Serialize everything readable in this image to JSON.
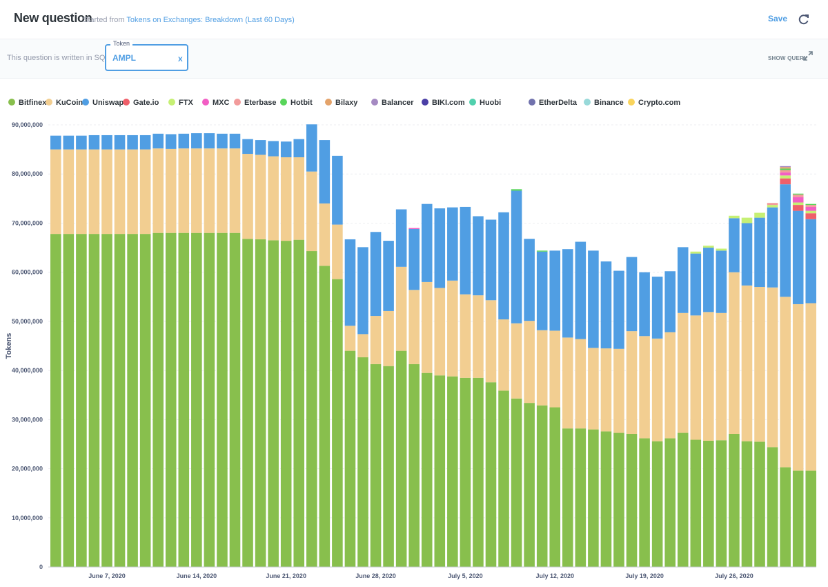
{
  "header": {
    "title": "New question",
    "started_from": "Started from",
    "source_link": "Tokens on Exchanges: Breakdown (Last 60 Days)",
    "save_label": "Save"
  },
  "filter": {
    "sql_note": "This question is written in SQL.",
    "token_label": "Token",
    "token_value": "AMPL",
    "clear_label": "x",
    "show_query_label": "SHOW QUERY"
  },
  "colors": {
    "accent": "#509ee3"
  },
  "chart_data": {
    "type": "bar",
    "stacked": true,
    "ylabel": "Tokens",
    "ylim": [
      0,
      90000000
    ],
    "yticks": [
      0,
      10000000,
      20000000,
      30000000,
      40000000,
      50000000,
      60000000,
      70000000,
      80000000,
      90000000
    ],
    "ytick_labels": [
      "0",
      "10,000,000",
      "20,000,000",
      "30,000,000",
      "40,000,000",
      "50,000,000",
      "60,000,000",
      "70,000,000",
      "80,000,000",
      "90,000,000"
    ],
    "grid": true,
    "legend_position": "top-left",
    "x": [
      "2020-06-03",
      "2020-06-04",
      "2020-06-05",
      "2020-06-06",
      "2020-06-07",
      "2020-06-08",
      "2020-06-09",
      "2020-06-10",
      "2020-06-11",
      "2020-06-12",
      "2020-06-13",
      "2020-06-14",
      "2020-06-15",
      "2020-06-16",
      "2020-06-17",
      "2020-06-18",
      "2020-06-19",
      "2020-06-20",
      "2020-06-21",
      "2020-06-22",
      "2020-06-23",
      "2020-06-24",
      "2020-06-25",
      "2020-06-26",
      "2020-06-27",
      "2020-06-28",
      "2020-06-29",
      "2020-06-30",
      "2020-07-01",
      "2020-07-02",
      "2020-07-03",
      "2020-07-04",
      "2020-07-05",
      "2020-07-06",
      "2020-07-07",
      "2020-07-08",
      "2020-07-09",
      "2020-07-10",
      "2020-07-11",
      "2020-07-12",
      "2020-07-13",
      "2020-07-14",
      "2020-07-15",
      "2020-07-16",
      "2020-07-17",
      "2020-07-18",
      "2020-07-19",
      "2020-07-20",
      "2020-07-21",
      "2020-07-22",
      "2020-07-23",
      "2020-07-24",
      "2020-07-25",
      "2020-07-26",
      "2020-07-27",
      "2020-07-28",
      "2020-07-29",
      "2020-07-30",
      "2020-07-31",
      "2020-08-01"
    ],
    "xtick_labels": [
      {
        "index": 4,
        "label": "June 7, 2020"
      },
      {
        "index": 11,
        "label": "June 14, 2020"
      },
      {
        "index": 18,
        "label": "June 21, 2020"
      },
      {
        "index": 25,
        "label": "June 28, 2020"
      },
      {
        "index": 32,
        "label": "July 5, 2020"
      },
      {
        "index": 39,
        "label": "July 12, 2020"
      },
      {
        "index": 46,
        "label": "July 19, 2020"
      },
      {
        "index": 53,
        "label": "July 26, 2020"
      }
    ],
    "series": [
      {
        "name": "Bitfinex",
        "color": "#88bf4d",
        "values": [
          67.8,
          67.8,
          67.8,
          67.8,
          67.8,
          67.8,
          67.8,
          67.8,
          68.0,
          68.0,
          68.0,
          68.0,
          68.0,
          68.0,
          68.0,
          66.8,
          66.7,
          66.5,
          66.4,
          66.6,
          64.3,
          61.3,
          58.6,
          44.0,
          42.7,
          41.3,
          40.9,
          44.0,
          41.3,
          39.5,
          39.0,
          38.8,
          38.5,
          38.5,
          37.6,
          35.9,
          34.3,
          33.4,
          32.9,
          32.5,
          28.2,
          28.2,
          28.0,
          27.6,
          27.3,
          27.1,
          26.2,
          25.6,
          26.2,
          27.3,
          25.9,
          25.7,
          25.8,
          27.1,
          25.6,
          25.5,
          24.4,
          20.3,
          19.6,
          19.6
        ]
      },
      {
        "name": "KuCoin",
        "color": "#f2ce91",
        "values": [
          17.2,
          17.2,
          17.2,
          17.2,
          17.2,
          17.2,
          17.2,
          17.2,
          17.2,
          17.1,
          17.2,
          17.2,
          17.2,
          17.2,
          17.2,
          17.3,
          17.2,
          17.1,
          17.0,
          16.8,
          16.2,
          12.7,
          11.1,
          5.1,
          4.7,
          9.8,
          11.2,
          17.1,
          15.1,
          18.5,
          17.8,
          19.5,
          17.0,
          16.8,
          16.7,
          14.5,
          15.3,
          16.7,
          15.3,
          15.6,
          18.5,
          18.2,
          16.6,
          16.9,
          17.1,
          20.9,
          20.8,
          20.9,
          21.6,
          24.4,
          25.3,
          26.2,
          25.9,
          32.9,
          31.7,
          31.5,
          32.5,
          34.7,
          33.9,
          34.1
        ]
      },
      {
        "name": "Uniswap",
        "color": "#509ee3",
        "values": [
          2.8,
          2.8,
          2.8,
          2.9,
          2.9,
          2.9,
          2.9,
          2.9,
          3.0,
          3.0,
          3.0,
          3.1,
          3.1,
          3.0,
          3.0,
          3.0,
          3.0,
          3.1,
          3.2,
          3.7,
          9.6,
          12.9,
          14.0,
          17.6,
          17.7,
          17.1,
          14.3,
          11.7,
          12.4,
          15.9,
          16.2,
          14.9,
          17.8,
          16.1,
          16.4,
          21.8,
          27.0,
          16.7,
          16.0,
          16.3,
          18.0,
          19.8,
          19.8,
          17.7,
          15.9,
          15.1,
          13.0,
          12.6,
          12.4,
          13.4,
          12.6,
          13.1,
          12.7,
          11.0,
          12.7,
          14.1,
          16.3,
          22.9,
          19.0,
          17.1
        ]
      },
      {
        "name": "Gate.io",
        "color": "#ef5f6a",
        "values": [
          0,
          0,
          0,
          0,
          0,
          0,
          0,
          0,
          0,
          0,
          0,
          0,
          0,
          0,
          0,
          0,
          0,
          0,
          0,
          0,
          0,
          0,
          0,
          0,
          0,
          0,
          0,
          0,
          0,
          0,
          0,
          0,
          0,
          0,
          0,
          0,
          0,
          0,
          0,
          0,
          0,
          0,
          0,
          0,
          0,
          0,
          0,
          0,
          0,
          0,
          0,
          0,
          0,
          0,
          0,
          0,
          0,
          1.2,
          1.2,
          1.2
        ]
      },
      {
        "name": "FTX",
        "color": "#c6f074",
        "values": [
          0,
          0,
          0,
          0,
          0,
          0,
          0,
          0,
          0,
          0,
          0,
          0,
          0,
          0,
          0,
          0,
          0,
          0,
          0,
          0,
          0,
          0,
          0,
          0,
          0,
          0,
          0,
          0,
          0,
          0,
          0,
          0,
          0,
          0,
          0,
          0,
          0,
          0,
          0,
          0,
          0,
          0,
          0,
          0,
          0,
          0,
          0,
          0,
          0,
          0,
          0.4,
          0.4,
          0.4,
          0.5,
          1.1,
          1.0,
          0.5,
          0.6,
          0.5,
          0.5
        ]
      },
      {
        "name": "MXC",
        "color": "#f25ec4",
        "values": [
          0,
          0,
          0,
          0,
          0,
          0,
          0,
          0,
          0,
          0,
          0,
          0,
          0,
          0,
          0,
          0,
          0,
          0,
          0,
          0,
          0,
          0,
          0,
          0,
          0,
          0,
          0,
          0,
          0.2,
          0,
          0,
          0,
          0,
          0,
          0,
          0,
          0,
          0,
          0,
          0,
          0,
          0,
          0,
          0,
          0,
          0,
          0,
          0,
          0,
          0,
          0,
          0,
          0,
          0,
          0,
          0,
          0,
          0.6,
          1.1,
          0.8
        ]
      },
      {
        "name": "Eterbase",
        "color": "#f29b9b",
        "values": [
          0,
          0,
          0,
          0,
          0,
          0,
          0,
          0,
          0,
          0,
          0,
          0,
          0,
          0,
          0,
          0,
          0,
          0,
          0,
          0,
          0,
          0,
          0,
          0,
          0,
          0,
          0,
          0,
          0,
          0,
          0,
          0,
          0,
          0,
          0,
          0,
          0,
          0,
          0,
          0,
          0,
          0,
          0,
          0,
          0,
          0,
          0,
          0,
          0,
          0,
          0,
          0,
          0,
          0,
          0,
          0,
          0.4,
          0.5,
          0.5,
          0.4
        ]
      },
      {
        "name": "Hotbit",
        "color": "#58d55a",
        "values": [
          0,
          0,
          0,
          0,
          0,
          0,
          0,
          0,
          0,
          0,
          0,
          0,
          0,
          0,
          0,
          0,
          0,
          0,
          0,
          0,
          0,
          0,
          0,
          0,
          0,
          0,
          0,
          0,
          0,
          0,
          0,
          0,
          0,
          0,
          0,
          0,
          0.3,
          0,
          0.2,
          0,
          0,
          0,
          0,
          0,
          0,
          0,
          0,
          0,
          0,
          0,
          0,
          0,
          0,
          0,
          0,
          0,
          0,
          0.3,
          0.2,
          0.2
        ]
      },
      {
        "name": "Bilaxy",
        "color": "#e4a36a",
        "values": [
          0,
          0,
          0,
          0,
          0,
          0,
          0,
          0,
          0,
          0,
          0,
          0,
          0,
          0,
          0,
          0,
          0,
          0,
          0,
          0,
          0,
          0,
          0,
          0,
          0,
          0,
          0,
          0,
          0,
          0,
          0,
          0,
          0,
          0,
          0,
          0,
          0,
          0,
          0,
          0,
          0,
          0,
          0,
          0,
          0,
          0,
          0,
          0,
          0,
          0,
          0,
          0,
          0,
          0,
          0,
          0,
          0,
          0.3,
          0,
          0
        ]
      },
      {
        "name": "Balancer",
        "color": "#a58ac2",
        "values": [
          0,
          0,
          0,
          0,
          0,
          0,
          0,
          0,
          0,
          0,
          0,
          0,
          0,
          0,
          0,
          0,
          0,
          0,
          0,
          0,
          0,
          0,
          0,
          0,
          0,
          0,
          0,
          0,
          0,
          0,
          0,
          0,
          0,
          0,
          0,
          0,
          0,
          0,
          0,
          0,
          0,
          0,
          0,
          0,
          0,
          0,
          0,
          0,
          0,
          0,
          0,
          0,
          0,
          0,
          0,
          0,
          0,
          0.2,
          0,
          0
        ]
      },
      {
        "name": "BIKI.com",
        "color": "#4b3fa6",
        "values": [
          0,
          0,
          0,
          0,
          0,
          0,
          0,
          0,
          0,
          0,
          0,
          0,
          0,
          0,
          0,
          0,
          0,
          0,
          0,
          0,
          0,
          0,
          0,
          0,
          0,
          0,
          0,
          0,
          0,
          0,
          0,
          0,
          0,
          0,
          0,
          0,
          0,
          0,
          0,
          0,
          0,
          0,
          0,
          0,
          0,
          0,
          0,
          0,
          0,
          0,
          0,
          0,
          0,
          0,
          0,
          0,
          0,
          0,
          0,
          0
        ]
      },
      {
        "name": "Huobi",
        "color": "#51d0ad",
        "values": [
          0,
          0,
          0,
          0,
          0,
          0,
          0,
          0,
          0,
          0,
          0,
          0,
          0,
          0,
          0,
          0,
          0,
          0,
          0,
          0,
          0,
          0,
          0,
          0,
          0,
          0,
          0,
          0,
          0,
          0,
          0,
          0,
          0,
          0,
          0,
          0,
          0,
          0,
          0,
          0,
          0,
          0,
          0,
          0,
          0,
          0,
          0,
          0,
          0,
          0,
          0,
          0,
          0,
          0,
          0,
          0,
          0,
          0,
          0,
          0
        ]
      },
      {
        "name": "EtherDelta",
        "color": "#7172ad",
        "values": [
          0,
          0,
          0,
          0,
          0,
          0,
          0,
          0,
          0,
          0,
          0,
          0,
          0,
          0,
          0,
          0,
          0,
          0,
          0,
          0,
          0,
          0,
          0,
          0,
          0,
          0,
          0,
          0,
          0,
          0,
          0,
          0,
          0,
          0,
          0,
          0,
          0,
          0,
          0,
          0,
          0,
          0,
          0,
          0,
          0,
          0,
          0,
          0,
          0,
          0,
          0,
          0,
          0,
          0,
          0,
          0,
          0,
          0,
          0,
          0
        ]
      },
      {
        "name": "Binance",
        "color": "#98d9d9",
        "values": [
          0,
          0,
          0,
          0,
          0,
          0,
          0,
          0,
          0,
          0,
          0,
          0,
          0,
          0,
          0,
          0,
          0,
          0,
          0,
          0,
          0,
          0,
          0,
          0,
          0,
          0,
          0,
          0,
          0,
          0,
          0,
          0,
          0,
          0,
          0,
          0,
          0,
          0,
          0,
          0,
          0,
          0,
          0,
          0,
          0,
          0,
          0,
          0,
          0,
          0,
          0,
          0,
          0,
          0,
          0,
          0,
          0,
          0,
          0,
          0
        ]
      },
      {
        "name": "Crypto.com",
        "color": "#f9d45c",
        "values": [
          0,
          0,
          0,
          0,
          0,
          0,
          0,
          0,
          0,
          0,
          0,
          0,
          0,
          0,
          0,
          0,
          0,
          0,
          0,
          0,
          0,
          0,
          0,
          0,
          0,
          0,
          0,
          0,
          0,
          0,
          0,
          0,
          0,
          0,
          0,
          0,
          0,
          0,
          0,
          0,
          0,
          0,
          0,
          0,
          0,
          0,
          0,
          0,
          0,
          0,
          0,
          0,
          0,
          0,
          0,
          0,
          0,
          0,
          0,
          0
        ]
      }
    ],
    "value_unit": "millions of tokens"
  }
}
